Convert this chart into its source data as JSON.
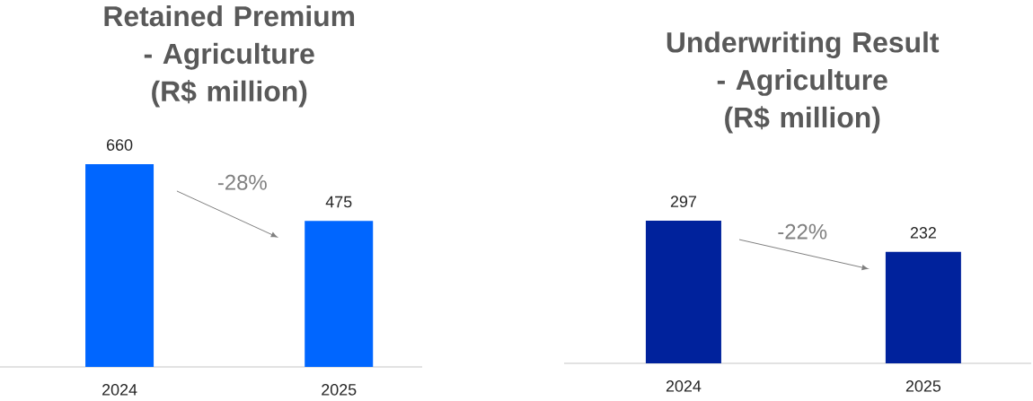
{
  "chart_data": [
    {
      "type": "bar",
      "title": "Retained Premium - Agriculture (R$ million)",
      "categories": [
        "2024",
        "2025"
      ],
      "values": [
        660,
        475
      ],
      "color": "#0066ff",
      "data_labels": true,
      "annotations": [
        "-28%"
      ]
    },
    {
      "type": "bar",
      "title": "Underwriting Result - Agriculture (R$ million)",
      "categories": [
        "2024",
        "2025"
      ],
      "values": [
        297,
        232
      ],
      "color": "#00229c",
      "data_labels": true,
      "annotations": [
        "-22%"
      ]
    }
  ]
}
